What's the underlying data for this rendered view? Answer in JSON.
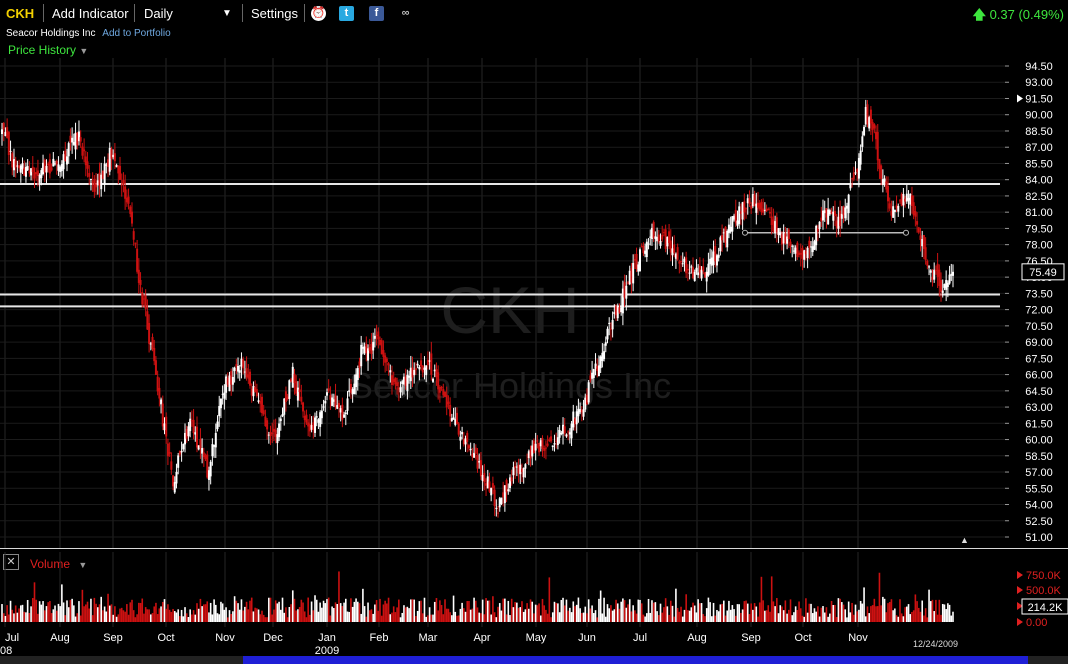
{
  "toolbar": {
    "symbol": "CKH",
    "add_indicator": "Add Indicator",
    "period": "Daily",
    "settings": "Settings",
    "change": "0.37 (0.49%)"
  },
  "header": {
    "company": "Seacor Holdings Inc",
    "add_to_portfolio": "Add to Portfolio",
    "panel_title": "Price History"
  },
  "watermark": {
    "symbol": "CKH",
    "name": "Seacor Holdings Inc"
  },
  "volume_panel": {
    "title": "Volume",
    "current": "214.2K"
  },
  "last_date": "12/24/2009",
  "colors": {
    "up": "#ffffff",
    "down": "#cc1111",
    "accent": "#3ee63e",
    "symbol": "#f3d000"
  },
  "chart_data": {
    "type": "candlestick",
    "x_labels": [
      "Jul",
      "Aug",
      "Sep",
      "Oct",
      "Nov",
      "Dec",
      "Jan",
      "Feb",
      "Mar",
      "Apr",
      "May",
      "Jun",
      "Jul",
      "Aug",
      "Sep",
      "Oct",
      "Nov"
    ],
    "x_sublabels": [
      {
        "under": 0,
        "text": "08"
      },
      {
        "under": 6,
        "text": "2009"
      }
    ],
    "y_ticks": [
      "94.50",
      "93.00",
      "91.50",
      "90.00",
      "88.50",
      "87.00",
      "85.50",
      "84.00",
      "82.50",
      "81.00",
      "79.50",
      "78.00",
      "76.50",
      "75.00",
      "73.50",
      "72.00",
      "70.50",
      "69.00",
      "67.50",
      "66.00",
      "64.50",
      "63.00",
      "61.50",
      "60.00",
      "58.50",
      "57.00",
      "55.50",
      "54.00",
      "52.50",
      "51.00"
    ],
    "ylim": [
      51.0,
      94.5
    ],
    "last_price": "75.49",
    "last_marker": "91.50",
    "horizontal_lines": [
      83.6,
      73.4,
      72.3
    ],
    "trend_segment": {
      "from_month": "Sep",
      "to_month": "Nov",
      "value": 79.1
    },
    "close_anchors": [
      [
        0,
        88.5
      ],
      [
        8,
        85
      ],
      [
        20,
        84.5
      ],
      [
        35,
        86
      ],
      [
        45,
        88
      ],
      [
        55,
        83
      ],
      [
        65,
        87
      ],
      [
        75,
        81
      ],
      [
        80,
        75
      ],
      [
        90,
        66
      ],
      [
        100,
        56
      ],
      [
        110,
        62
      ],
      [
        120,
        57
      ],
      [
        130,
        65
      ],
      [
        140,
        67
      ],
      [
        150,
        63
      ],
      [
        160,
        60
      ],
      [
        170,
        66
      ],
      [
        180,
        61
      ],
      [
        190,
        64
      ],
      [
        200,
        62
      ],
      [
        210,
        68
      ],
      [
        220,
        69
      ],
      [
        230,
        65
      ],
      [
        240,
        66
      ],
      [
        250,
        67
      ],
      [
        260,
        63
      ],
      [
        270,
        60
      ],
      [
        280,
        57
      ],
      [
        290,
        54
      ],
      [
        300,
        57
      ],
      [
        310,
        59
      ],
      [
        320,
        60
      ],
      [
        330,
        61
      ],
      [
        340,
        63
      ],
      [
        350,
        68
      ],
      [
        360,
        72
      ],
      [
        370,
        76
      ],
      [
        380,
        79
      ],
      [
        390,
        78
      ],
      [
        400,
        76
      ],
      [
        410,
        75
      ],
      [
        420,
        78
      ],
      [
        430,
        81
      ],
      [
        440,
        82
      ],
      [
        450,
        80
      ],
      [
        460,
        78
      ],
      [
        470,
        77
      ],
      [
        480,
        81
      ],
      [
        490,
        80
      ],
      [
        500,
        85
      ],
      [
        505,
        90
      ],
      [
        510,
        88
      ],
      [
        515,
        84
      ],
      [
        520,
        81
      ],
      [
        530,
        83
      ],
      [
        535,
        80
      ],
      [
        540,
        77
      ],
      [
        545,
        75
      ],
      [
        550,
        74
      ],
      [
        556,
        75.49
      ]
    ],
    "volume": {
      "ylim": [
        0,
        850000
      ],
      "ticks": [
        "750.0K",
        "500.0K",
        "250.0K",
        "0.00"
      ]
    }
  }
}
